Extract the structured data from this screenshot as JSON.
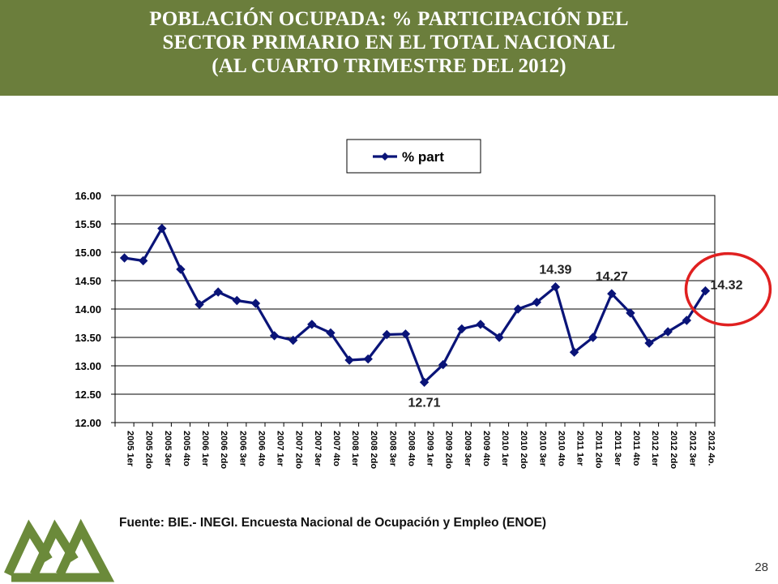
{
  "slide": {
    "title_lines": [
      "POBLACIÓN OCUPADA: % PARTICIPACIÓN DEL",
      "SECTOR PRIMARIO EN EL TOTAL NACIONAL",
      "(AL CUARTO TRIMESTRE DEL 2012)"
    ],
    "source": "Fuente: BIE.- INEGI. Encuesta Nacional de Ocupación y Empleo (ENOE)",
    "page_number": "28"
  },
  "colors": {
    "header_bg": "#6b7e3c",
    "series": "#0a1478",
    "highlight_circle": "#e02020",
    "logo": "#6b8a3a"
  },
  "icons": {
    "logo": "green-mountain-logo"
  },
  "chart_data": {
    "type": "line",
    "title": "",
    "xlabel": "",
    "ylabel": "",
    "ylim": [
      12.0,
      16.0
    ],
    "yticks": [
      "12.00",
      "12.50",
      "13.00",
      "13.50",
      "14.00",
      "14.50",
      "15.00",
      "15.50",
      "16.00"
    ],
    "grid": "horizontal",
    "legend": "top-center",
    "categories": [
      "2005 1er",
      "2005 2do",
      "2005 3er",
      "2005 4to",
      "2006 1er",
      "2006 2do",
      "2006 3er",
      "2006 4to",
      "2007 1er",
      "2007 2do",
      "2007 3er",
      "2007 4to",
      "2008 1er",
      "2008 2do",
      "2008 3er",
      "2008 4to",
      "2009 1er",
      "2009 2do",
      "2009 3er",
      "2009 4to",
      "2010 1er",
      "2010 2do",
      "2010 3er",
      "2010 4to",
      "2011 1er",
      "2011 2do",
      "2011 3er",
      "2011 4to",
      "2012 1er",
      "2012 2do",
      "2012 3er",
      "2012 4o."
    ],
    "series": [
      {
        "name": "% part",
        "values": [
          14.9,
          14.85,
          15.42,
          14.7,
          14.08,
          14.3,
          14.15,
          14.1,
          13.53,
          13.45,
          13.73,
          13.58,
          13.1,
          13.12,
          13.55,
          13.56,
          12.71,
          13.02,
          13.65,
          13.73,
          13.5,
          14.0,
          14.12,
          14.39,
          13.24,
          13.5,
          14.27,
          13.93,
          13.4,
          13.6,
          13.8,
          14.32
        ]
      }
    ],
    "annotations": [
      {
        "index": 16,
        "text": "12.71",
        "position": "below"
      },
      {
        "index": 23,
        "text": "14.39",
        "position": "above"
      },
      {
        "index": 26,
        "text": "14.27",
        "position": "above"
      },
      {
        "index": 31,
        "text": "14.32",
        "position": "right"
      }
    ],
    "highlight_index": 31
  }
}
